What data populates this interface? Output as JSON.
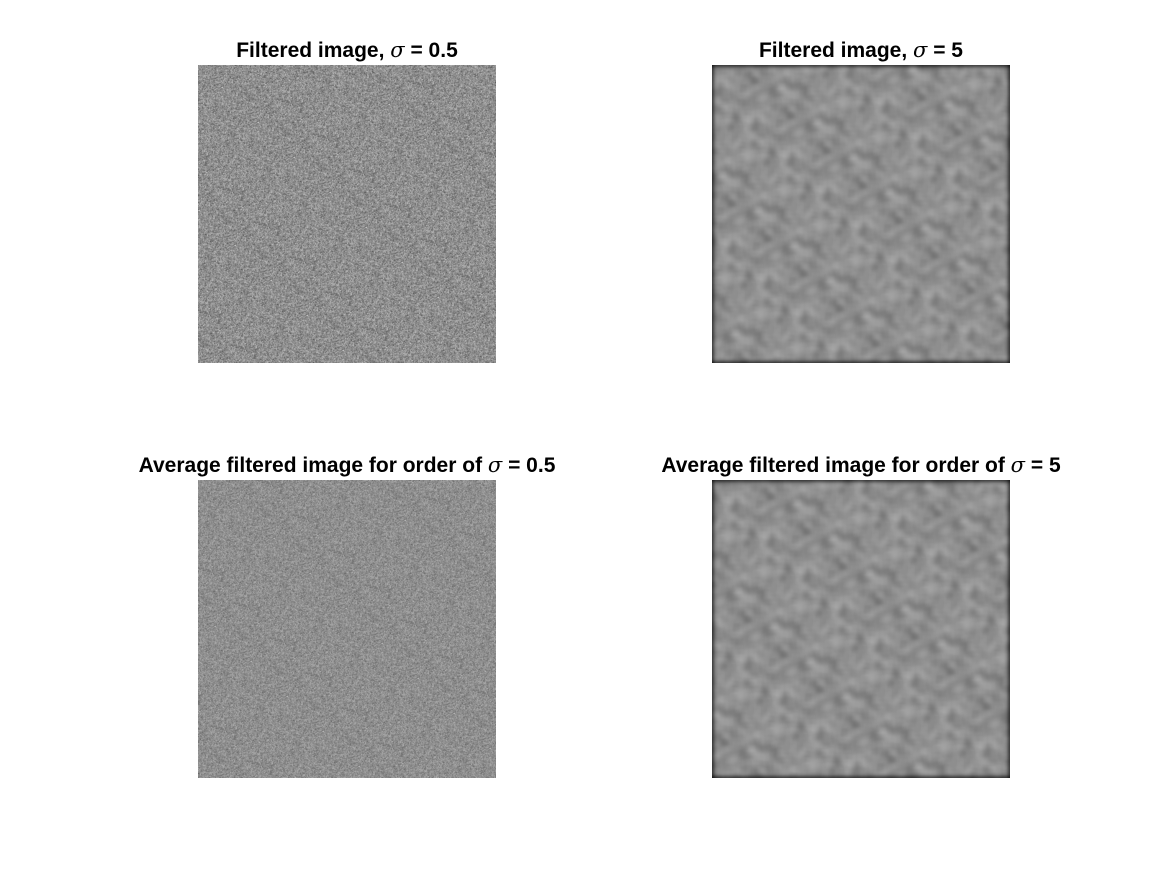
{
  "panels": [
    {
      "title_prefix": "Filtered image, ",
      "sigma_symbol": "σ",
      "title_suffix": " = 0.5",
      "sigma": 0.5,
      "image": "fine-grain gray noise"
    },
    {
      "title_prefix": "Filtered image, ",
      "sigma_symbol": "σ",
      "title_suffix": " = 5",
      "sigma": 5,
      "image": "smooth gray noise with darker border"
    },
    {
      "title_prefix": "Average filtered image for order of ",
      "sigma_symbol": "σ",
      "title_suffix": " = 0.5",
      "sigma": 0.5,
      "image": "fine-grain gray noise"
    },
    {
      "title_prefix": "Average filtered image for order of ",
      "sigma_symbol": "σ",
      "title_suffix": " = 5",
      "sigma": 5,
      "image": "smooth gray noise with darker border"
    }
  ],
  "colors": {
    "background": "#ffffff",
    "image_mid_gray": "#8e8e8e",
    "border_dark_gray": "#555555"
  }
}
